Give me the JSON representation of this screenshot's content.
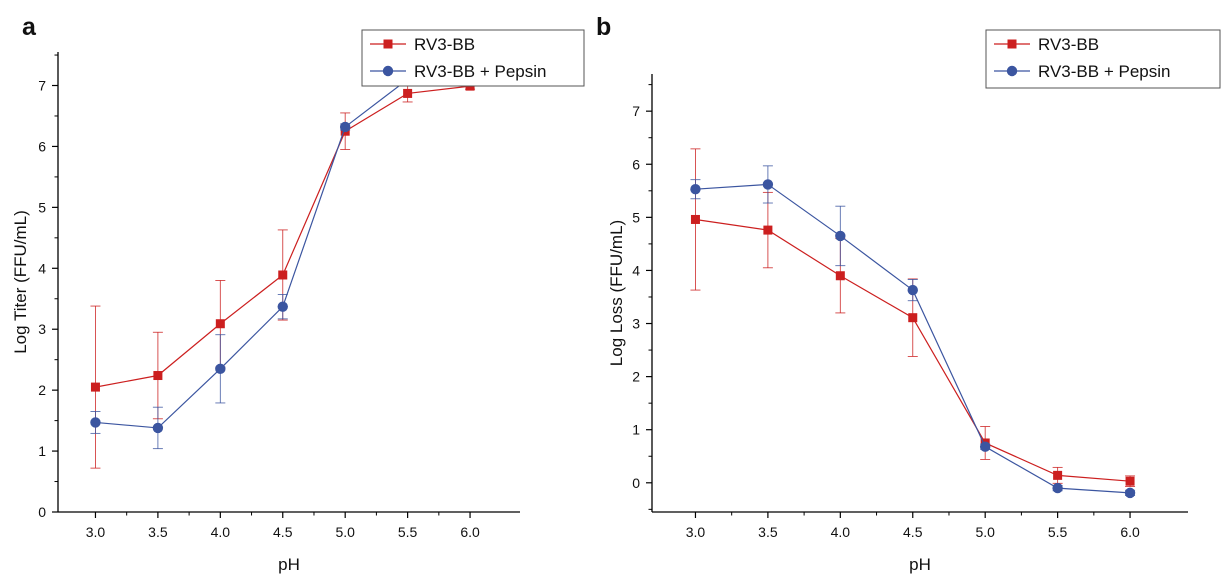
{
  "chart_data": [
    {
      "panel": "a",
      "type": "line",
      "xlabel": "pH",
      "ylabel": "Log Titer (FFU/mL)",
      "x": [
        3.0,
        3.5,
        4.0,
        4.5,
        5.0,
        5.5,
        6.0
      ],
      "x_tick_labels": [
        "3.0",
        "3.5",
        "4.0",
        "4.5",
        "5.0",
        "5.5",
        "6.0"
      ],
      "y_ticks": [
        0,
        1,
        2,
        3,
        4,
        5,
        6,
        7
      ],
      "xlim": [
        2.7,
        6.4
      ],
      "ylim": [
        0,
        7.55
      ],
      "legend_position": "top-right",
      "grid": false,
      "series": [
        {
          "name": "RV3-BB",
          "color": "#cc1f1f",
          "marker": "square",
          "values": [
            2.05,
            2.24,
            3.09,
            3.89,
            6.25,
            6.87,
            6.99
          ],
          "errors": [
            1.33,
            0.71,
            0.71,
            0.74,
            0.3,
            0.14,
            0.05
          ]
        },
        {
          "name": "RV3-BB + Pepsin",
          "color": "#3b55a0",
          "marker": "circle",
          "values": [
            1.47,
            1.38,
            2.35,
            3.37,
            6.32,
            7.1,
            7.2
          ],
          "errors": [
            0.18,
            0.34,
            0.56,
            0.2,
            0.05,
            0.05,
            0.05
          ]
        }
      ]
    },
    {
      "panel": "b",
      "type": "line",
      "xlabel": "pH",
      "ylabel": "Log Loss (FFU/mL)",
      "x": [
        3.0,
        3.5,
        4.0,
        4.5,
        5.0,
        5.5,
        6.0
      ],
      "x_tick_labels": [
        "3.0",
        "3.5",
        "4.0",
        "4.5",
        "5.0",
        "5.5",
        "6.0"
      ],
      "y_ticks": [
        0,
        1,
        2,
        3,
        4,
        5,
        6,
        7
      ],
      "xlim": [
        2.7,
        6.4
      ],
      "ylim": [
        -0.55,
        7.7
      ],
      "legend_position": "top-right",
      "grid": false,
      "series": [
        {
          "name": "RV3-BB",
          "color": "#cc1f1f",
          "marker": "square",
          "values": [
            4.96,
            4.76,
            3.9,
            3.11,
            0.75,
            0.14,
            0.03
          ],
          "errors": [
            1.33,
            0.71,
            0.7,
            0.73,
            0.31,
            0.15,
            0.1
          ]
        },
        {
          "name": "RV3-BB + Pepsin",
          "color": "#3b55a0",
          "marker": "circle",
          "values": [
            5.53,
            5.62,
            4.65,
            3.63,
            0.68,
            -0.1,
            -0.19
          ],
          "errors": [
            0.18,
            0.35,
            0.56,
            0.2,
            0.05,
            0.05,
            0.05
          ]
        }
      ]
    }
  ]
}
